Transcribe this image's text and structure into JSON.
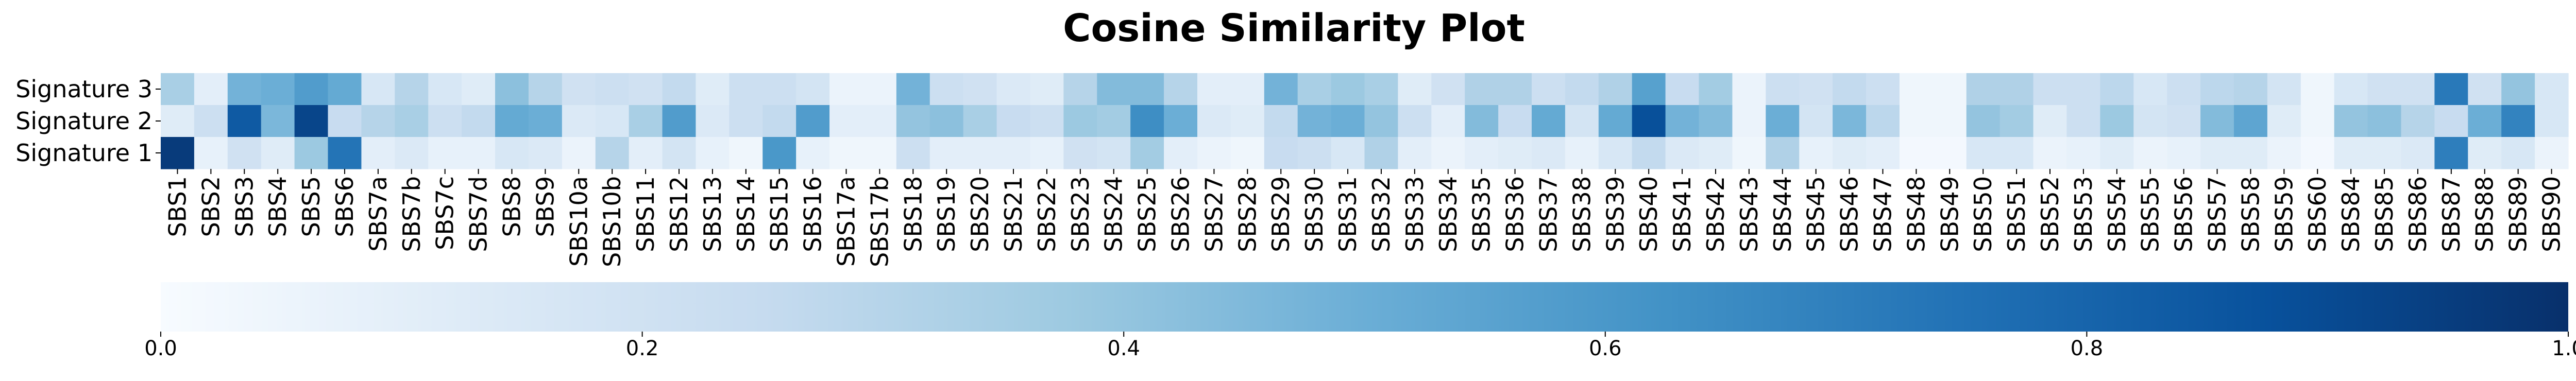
{
  "chart_data": {
    "type": "heatmap",
    "title": "Cosine Similarity Plot",
    "xlabel": "",
    "ylabel": "",
    "colormap": "Blues",
    "colormap_stops": [
      "#f7fbff",
      "#deebf7",
      "#c6dbef",
      "#9ecae1",
      "#6baed6",
      "#4292c6",
      "#2171b5",
      "#08519c",
      "#08306b"
    ],
    "rows": [
      "Signature 3",
      "Signature 2",
      "Signature 1"
    ],
    "columns": [
      "SBS1",
      "SBS2",
      "SBS3",
      "SBS4",
      "SBS5",
      "SBS6",
      "SBS7a",
      "SBS7b",
      "SBS7c",
      "SBS7d",
      "SBS8",
      "SBS9",
      "SBS10a",
      "SBS10b",
      "SBS11",
      "SBS12",
      "SBS13",
      "SBS14",
      "SBS15",
      "SBS16",
      "SBS17a",
      "SBS17b",
      "SBS18",
      "SBS19",
      "SBS20",
      "SBS21",
      "SBS22",
      "SBS23",
      "SBS24",
      "SBS25",
      "SBS26",
      "SBS27",
      "SBS28",
      "SBS29",
      "SBS30",
      "SBS31",
      "SBS32",
      "SBS33",
      "SBS34",
      "SBS35",
      "SBS36",
      "SBS37",
      "SBS38",
      "SBS39",
      "SBS40",
      "SBS41",
      "SBS42",
      "SBS43",
      "SBS44",
      "SBS45",
      "SBS46",
      "SBS47",
      "SBS48",
      "SBS49",
      "SBS50",
      "SBS51",
      "SBS52",
      "SBS53",
      "SBS54",
      "SBS55",
      "SBS56",
      "SBS57",
      "SBS58",
      "SBS59",
      "SBS60",
      "SBS84",
      "SBS85",
      "SBS86",
      "SBS87",
      "SBS88",
      "SBS89",
      "SBS90"
    ],
    "values": [
      [
        0.34,
        0.1,
        0.48,
        0.5,
        0.58,
        0.52,
        0.16,
        0.3,
        0.16,
        0.12,
        0.42,
        0.3,
        0.2,
        0.22,
        0.2,
        0.26,
        0.12,
        0.22,
        0.22,
        0.18,
        0.06,
        0.06,
        0.48,
        0.22,
        0.2,
        0.14,
        0.12,
        0.3,
        0.44,
        0.44,
        0.3,
        0.1,
        0.1,
        0.48,
        0.34,
        0.38,
        0.34,
        0.12,
        0.2,
        0.32,
        0.32,
        0.22,
        0.26,
        0.32,
        0.56,
        0.24,
        0.36,
        0.06,
        0.22,
        0.2,
        0.26,
        0.22,
        0.04,
        0.04,
        0.32,
        0.32,
        0.22,
        0.22,
        0.28,
        0.16,
        0.22,
        0.28,
        0.3,
        0.18,
        0.04,
        0.16,
        0.2,
        0.2,
        0.72,
        0.2,
        0.4,
        0.16
      ],
      [
        0.12,
        0.22,
        0.84,
        0.46,
        0.92,
        0.24,
        0.3,
        0.34,
        0.22,
        0.26,
        0.52,
        0.5,
        0.14,
        0.16,
        0.34,
        0.58,
        0.14,
        0.22,
        0.26,
        0.58,
        0.1,
        0.1,
        0.4,
        0.42,
        0.34,
        0.24,
        0.22,
        0.38,
        0.36,
        0.64,
        0.5,
        0.14,
        0.12,
        0.26,
        0.48,
        0.5,
        0.4,
        0.22,
        0.1,
        0.44,
        0.24,
        0.52,
        0.18,
        0.52,
        0.88,
        0.48,
        0.44,
        0.06,
        0.5,
        0.18,
        0.46,
        0.28,
        0.04,
        0.04,
        0.4,
        0.36,
        0.12,
        0.22,
        0.38,
        0.18,
        0.2,
        0.44,
        0.54,
        0.12,
        0.04,
        0.4,
        0.42,
        0.3,
        0.24,
        0.5,
        0.68,
        0.16
      ],
      [
        0.96,
        0.08,
        0.2,
        0.12,
        0.38,
        0.74,
        0.1,
        0.14,
        0.08,
        0.08,
        0.16,
        0.14,
        0.06,
        0.3,
        0.1,
        0.18,
        0.08,
        0.04,
        0.6,
        0.08,
        0.04,
        0.04,
        0.22,
        0.1,
        0.1,
        0.1,
        0.08,
        0.2,
        0.18,
        0.36,
        0.1,
        0.06,
        0.04,
        0.24,
        0.22,
        0.16,
        0.32,
        0.1,
        0.06,
        0.1,
        0.12,
        0.14,
        0.08,
        0.16,
        0.26,
        0.14,
        0.12,
        0.04,
        0.32,
        0.08,
        0.12,
        0.1,
        0.02,
        0.02,
        0.16,
        0.16,
        0.06,
        0.08,
        0.12,
        0.06,
        0.08,
        0.12,
        0.12,
        0.06,
        0.02,
        0.12,
        0.12,
        0.14,
        0.7,
        0.12,
        0.16,
        0.06
      ]
    ],
    "colorbar": {
      "range": [
        0.0,
        1.0
      ],
      "ticks": [
        "0.0",
        "0.2",
        "0.4",
        "0.6",
        "0.8",
        "1.0"
      ]
    }
  }
}
